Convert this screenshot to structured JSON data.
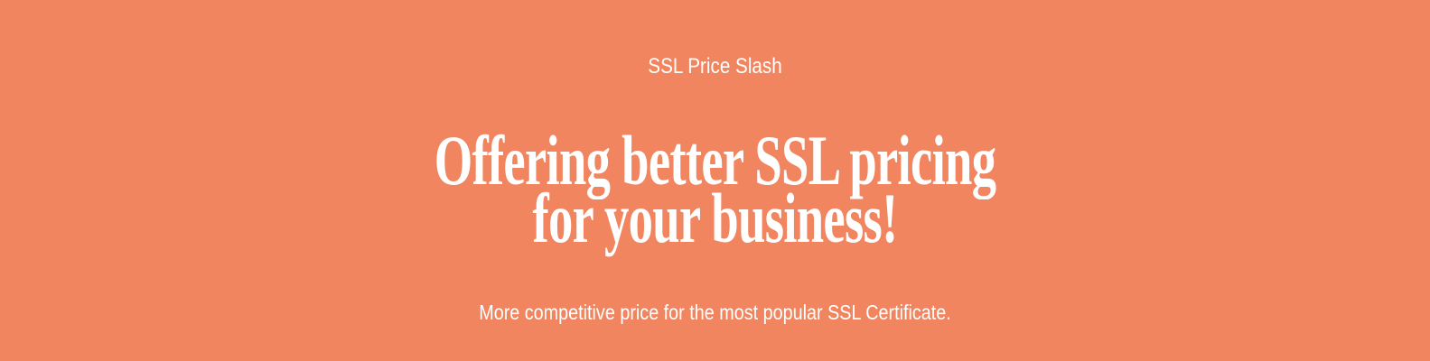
{
  "hero": {
    "eyebrow": "SSL Price Slash",
    "headline_line1": "Offering better SSL pricing",
    "headline_line2": "for your business!",
    "subtitle": "More competitive price for the most popular SSL Certificate.",
    "background_color": "#F0855F",
    "text_color": "#FFFFFF"
  }
}
